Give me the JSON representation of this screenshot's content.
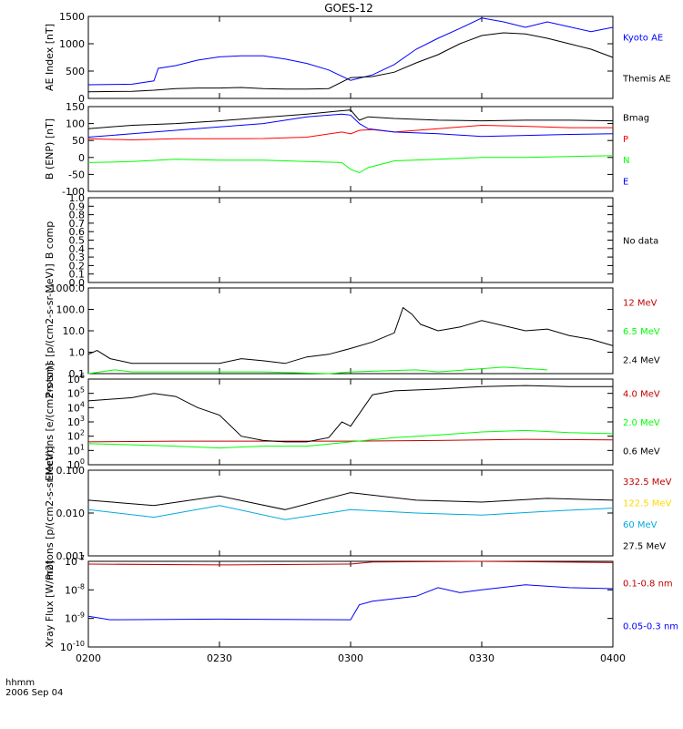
{
  "figure": {
    "title": "GOES-12",
    "time_axis_label": "hhmm",
    "date_label": "2006 Sep 04",
    "time_ticks": [
      "0200",
      "0230",
      "0300",
      "0330",
      "0400"
    ]
  },
  "chart_data": [
    {
      "type": "line",
      "ylabel": "AE Index [nT]",
      "ylim": [
        0,
        1500
      ],
      "yscale": "linear",
      "yticks": [
        "0",
        "500",
        "1000",
        "1500"
      ],
      "x_range_hours": [
        2.0,
        4.0
      ],
      "series": [
        {
          "name": "Kyoto AE",
          "color": "#0000ff",
          "x": [
            "02:00",
            "02:10",
            "02:15",
            "02:16",
            "02:20",
            "02:25",
            "02:30",
            "02:35",
            "02:40",
            "02:45",
            "02:50",
            "02:55",
            "03:00",
            "03:05",
            "03:10",
            "03:15",
            "03:20",
            "03:25",
            "03:30",
            "03:35",
            "03:40",
            "03:45",
            "03:50",
            "03:55",
            "04:00"
          ],
          "y": [
            250,
            260,
            320,
            550,
            600,
            700,
            760,
            780,
            780,
            720,
            640,
            520,
            330,
            430,
            620,
            900,
            1100,
            1280,
            1470,
            1400,
            1300,
            1400,
            1310,
            1220,
            1300
          ]
        },
        {
          "name": "Themis AE",
          "color": "#000000",
          "x": [
            "02:00",
            "02:10",
            "02:15",
            "02:20",
            "02:25",
            "02:30",
            "02:35",
            "02:40",
            "02:45",
            "02:50",
            "02:55",
            "03:00",
            "03:05",
            "03:10",
            "03:15",
            "03:20",
            "03:25",
            "03:30",
            "03:35",
            "03:40",
            "03:45",
            "03:50",
            "03:55",
            "04:00"
          ],
          "y": [
            120,
            130,
            150,
            180,
            190,
            190,
            200,
            180,
            170,
            170,
            180,
            380,
            400,
            480,
            650,
            800,
            1000,
            1150,
            1200,
            1180,
            1100,
            1000,
            900,
            750
          ]
        }
      ]
    },
    {
      "type": "line",
      "ylabel": "B (ENP) [nT]",
      "ylim": [
        -100,
        150
      ],
      "yscale": "linear",
      "yticks": [
        "-100",
        "-50",
        "0",
        "50",
        "100",
        "150"
      ],
      "series": [
        {
          "name": "Bmag",
          "color": "#000000",
          "x": [
            "02:00",
            "02:10",
            "02:20",
            "02:30",
            "02:40",
            "02:50",
            "02:58",
            "03:00",
            "03:02",
            "03:04",
            "03:10",
            "03:20",
            "03:30",
            "03:40",
            "03:50",
            "04:00"
          ],
          "y": [
            85,
            95,
            100,
            108,
            118,
            128,
            138,
            140,
            110,
            120,
            115,
            110,
            108,
            110,
            110,
            108
          ]
        },
        {
          "name": "P",
          "color": "#ff0000",
          "x": [
            "02:00",
            "02:10",
            "02:20",
            "02:30",
            "02:40",
            "02:50",
            "02:58",
            "03:00",
            "03:02",
            "03:05",
            "03:10",
            "03:20",
            "03:30",
            "03:40",
            "03:50",
            "04:00"
          ],
          "y": [
            55,
            52,
            55,
            55,
            56,
            60,
            75,
            70,
            80,
            82,
            75,
            85,
            95,
            92,
            88,
            88
          ]
        },
        {
          "name": "N",
          "color": "#00ff00",
          "x": [
            "02:00",
            "02:10",
            "02:20",
            "02:30",
            "02:40",
            "02:50",
            "02:58",
            "03:00",
            "03:02",
            "03:04",
            "03:10",
            "03:20",
            "03:30",
            "03:40",
            "03:50",
            "04:00"
          ],
          "y": [
            -15,
            -12,
            -5,
            -8,
            -8,
            -12,
            -15,
            -35,
            -45,
            -30,
            -10,
            -5,
            0,
            0,
            3,
            5
          ]
        },
        {
          "name": "E",
          "color": "#0000ff",
          "x": [
            "02:00",
            "02:10",
            "02:20",
            "02:30",
            "02:40",
            "02:50",
            "02:58",
            "03:00",
            "03:02",
            "03:04",
            "03:10",
            "03:20",
            "03:30",
            "03:40",
            "03:50",
            "04:00"
          ],
          "y": [
            60,
            70,
            80,
            90,
            100,
            120,
            128,
            125,
            100,
            85,
            75,
            70,
            62,
            65,
            68,
            70
          ]
        }
      ]
    },
    {
      "type": "line",
      "ylabel": "B comp",
      "ylim": [
        0.0,
        1.0
      ],
      "yscale": "linear",
      "yticks": [
        "0.0",
        "0.1",
        "0.2",
        "0.3",
        "0.4",
        "0.5",
        "0.6",
        "0.7",
        "0.8",
        "0.9",
        "1.0"
      ],
      "series": [
        {
          "name": "No data",
          "color": "#000000",
          "x": [],
          "y": []
        }
      ]
    },
    {
      "type": "line",
      "ylabel": "Protons [p/(cm2-s-sr-MeV)]",
      "ylim": [
        0.1,
        1000.0
      ],
      "yscale": "log",
      "yticks": [
        "0.1",
        "1.0",
        "10.0",
        "100.0",
        "1000.0"
      ],
      "series": [
        {
          "name": "12 MeV",
          "color": "#c00000",
          "x": [],
          "y": []
        },
        {
          "name": "6.5 MeV",
          "color": "#00ff00",
          "x": [
            "02:00",
            "02:06",
            "02:10",
            "02:20",
            "02:40",
            "02:55",
            "03:00",
            "03:15",
            "03:20",
            "03:35",
            "03:45"
          ],
          "y": [
            0.1,
            0.15,
            0.12,
            0.12,
            0.12,
            0.1,
            0.12,
            0.15,
            0.12,
            0.2,
            0.15
          ]
        },
        {
          "name": "2.4 MeV",
          "color": "#000000",
          "x": [
            "02:00",
            "02:02",
            "02:05",
            "02:10",
            "02:15",
            "02:20",
            "02:30",
            "02:35",
            "02:40",
            "02:45",
            "02:50",
            "02:55",
            "03:00",
            "03:05",
            "03:10",
            "03:12",
            "03:14",
            "03:16",
            "03:20",
            "03:25",
            "03:30",
            "03:40",
            "03:45",
            "03:50",
            "03:55",
            "04:00"
          ],
          "y": [
            0.8,
            1.2,
            0.5,
            0.3,
            0.3,
            0.3,
            0.3,
            0.5,
            0.4,
            0.3,
            0.6,
            0.8,
            1.5,
            3,
            8,
            120,
            60,
            20,
            10,
            15,
            30,
            10,
            12,
            6,
            4,
            2
          ]
        }
      ]
    },
    {
      "type": "line",
      "ylabel": "Electrons [e/(cm2-s-sr)]",
      "ylim_exp": [
        0,
        6
      ],
      "yscale": "log",
      "yticks": [
        "10^0",
        "10^1",
        "10^2",
        "10^3",
        "10^4",
        "10^5",
        "10^6"
      ],
      "series": [
        {
          "name": "4.0 MeV",
          "color": "#c00000",
          "x": [
            "02:00",
            "02:20",
            "02:40",
            "03:00",
            "03:20",
            "03:40",
            "04:00"
          ],
          "y": [
            40,
            45,
            45,
            45,
            50,
            60,
            55
          ]
        },
        {
          "name": "2.0 MeV",
          "color": "#00ff00",
          "x": [
            "02:00",
            "02:10",
            "02:20",
            "02:30",
            "02:40",
            "02:50",
            "03:00",
            "03:10",
            "03:20",
            "03:30",
            "03:40",
            "03:50",
            "04:00"
          ],
          "y": [
            30,
            25,
            20,
            15,
            20,
            20,
            40,
            80,
            120,
            200,
            250,
            180,
            150
          ]
        },
        {
          "name": "0.6 MeV",
          "color": "#000000",
          "x": [
            "02:00",
            "02:10",
            "02:15",
            "02:20",
            "02:25",
            "02:30",
            "02:35",
            "02:40",
            "02:45",
            "02:50",
            "02:55",
            "02:58",
            "03:00",
            "03:05",
            "03:10",
            "03:20",
            "03:30",
            "03:40",
            "03:50",
            "04:00"
          ],
          "y": [
            30000,
            50000,
            100000,
            60000,
            10000,
            3000,
            100,
            50,
            40,
            40,
            80,
            1000,
            500,
            80000,
            150000,
            200000,
            300000,
            350000,
            300000,
            300000
          ]
        }
      ]
    },
    {
      "type": "line",
      "ylabel": "Protons [p/(cm2-s-sr-MeV)]",
      "ylim": [
        0.001,
        0.1
      ],
      "yscale": "log",
      "yticks": [
        "0.001",
        "0.010",
        "0.100"
      ],
      "series": [
        {
          "name": "332.5 MeV",
          "color": "#c00000",
          "x": [],
          "y": []
        },
        {
          "name": "122.5 MeV",
          "color": "#ffd700",
          "x": [],
          "y": []
        },
        {
          "name": "60 MeV",
          "color": "#00aadd",
          "x": [
            "02:00",
            "02:15",
            "02:30",
            "02:45",
            "03:00",
            "03:15",
            "03:30",
            "03:45",
            "04:00"
          ],
          "y": [
            0.012,
            0.008,
            0.015,
            0.007,
            0.012,
            0.01,
            0.009,
            0.011,
            0.013
          ]
        },
        {
          "name": "27.5 MeV",
          "color": "#000000",
          "x": [
            "02:00",
            "02:15",
            "02:30",
            "02:45",
            "03:00",
            "03:15",
            "03:30",
            "03:45",
            "04:00"
          ],
          "y": [
            0.02,
            0.015,
            0.025,
            0.012,
            0.03,
            0.02,
            0.018,
            0.022,
            0.02
          ]
        }
      ]
    },
    {
      "type": "line",
      "ylabel": "Xray Flux [W/m2]",
      "ylim_exp": [
        -10,
        -7
      ],
      "yscale": "log",
      "yticks": [
        "10^-10",
        "10^-9",
        "10^-8",
        "10^-7"
      ],
      "series": [
        {
          "name": "0.1-0.8 nm",
          "color": "#c00000",
          "x": [
            "02:00",
            "02:30",
            "03:00",
            "03:05",
            "03:30",
            "04:00"
          ],
          "y": [
            8e-08,
            7.5e-08,
            8e-08,
            9.5e-08,
            1e-07,
            9e-08
          ]
        },
        {
          "name": "0.05-0.3 nm",
          "color": "#0000ff",
          "x": [
            "02:00",
            "02:05",
            "02:30",
            "03:00",
            "03:02",
            "03:05",
            "03:15",
            "03:20",
            "03:25",
            "03:30",
            "03:40",
            "03:50",
            "04:00"
          ],
          "y": [
            1.2e-09,
            9e-10,
            9.5e-10,
            9e-10,
            3e-09,
            4e-09,
            6e-09,
            1.2e-08,
            8e-09,
            1e-08,
            1.5e-08,
            1.2e-08,
            1.1e-08
          ]
        }
      ]
    }
  ]
}
